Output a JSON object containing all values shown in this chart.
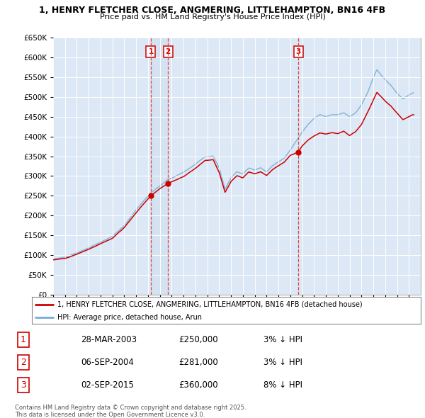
{
  "title1": "1, HENRY FLETCHER CLOSE, ANGMERING, LITTLEHAMPTON, BN16 4FB",
  "title2": "Price paid vs. HM Land Registry's House Price Index (HPI)",
  "legend_line1": "1, HENRY FLETCHER CLOSE, ANGMERING, LITTLEHAMPTON, BN16 4FB (detached house)",
  "legend_line2": "HPI: Average price, detached house, Arun",
  "transactions": [
    {
      "num": 1,
      "date": "28-MAR-2003",
      "price": 250000,
      "diff": "3% ↓ HPI",
      "year": 2003.24
    },
    {
      "num": 2,
      "date": "06-SEP-2004",
      "price": 281000,
      "diff": "3% ↓ HPI",
      "year": 2004.68
    },
    {
      "num": 3,
      "date": "02-SEP-2015",
      "price": 360000,
      "diff": "8% ↓ HPI",
      "year": 2015.67
    }
  ],
  "footer1": "Contains HM Land Registry data © Crown copyright and database right 2025.",
  "footer2": "This data is licensed under the Open Government Licence v3.0.",
  "ylim": [
    0,
    650000
  ],
  "xmin": 1995,
  "xmax": 2026,
  "bg_color": "#ffffff",
  "plot_bg_color": "#dce8f5",
  "grid_color": "#ffffff",
  "line_color_red": "#cc0000",
  "line_color_blue": "#7aadd4",
  "vline_color": "#dd4444",
  "marker_box_color": "#cc0000",
  "shade_color": "#c8d8ee"
}
